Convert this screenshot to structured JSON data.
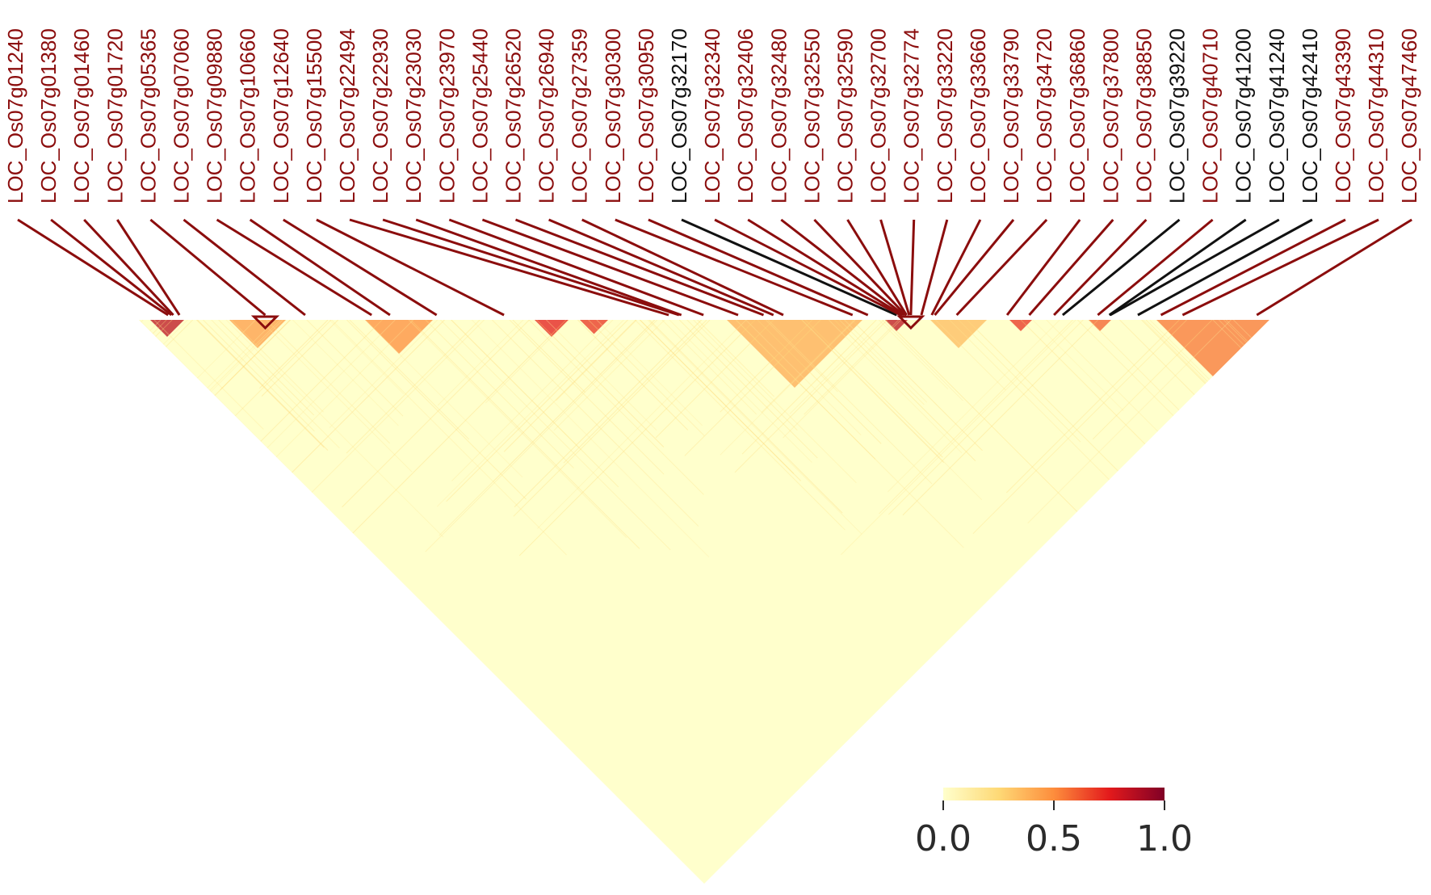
{
  "chart_data": {
    "type": "heatmap",
    "subtype": "linkage-disequilibrium-triangle",
    "genes": [
      {
        "name": "LOC_Os07g01240",
        "highlight": true
      },
      {
        "name": "LOC_Os07g01380",
        "highlight": true
      },
      {
        "name": "LOC_Os07g01460",
        "highlight": true
      },
      {
        "name": "LOC_Os07g01720",
        "highlight": true
      },
      {
        "name": "LOC_Os07g05365",
        "highlight": true
      },
      {
        "name": "LOC_Os07g07060",
        "highlight": true
      },
      {
        "name": "LOC_Os07g09880",
        "highlight": true
      },
      {
        "name": "LOC_Os07g10660",
        "highlight": true
      },
      {
        "name": "LOC_Os07g12640",
        "highlight": true
      },
      {
        "name": "LOC_Os07g15500",
        "highlight": true
      },
      {
        "name": "LOC_Os07g22494",
        "highlight": true
      },
      {
        "name": "LOC_Os07g22930",
        "highlight": true
      },
      {
        "name": "LOC_Os07g23030",
        "highlight": true
      },
      {
        "name": "LOC_Os07g23970",
        "highlight": true
      },
      {
        "name": "LOC_Os07g25440",
        "highlight": true
      },
      {
        "name": "LOC_Os07g26520",
        "highlight": true
      },
      {
        "name": "LOC_Os07g26940",
        "highlight": true
      },
      {
        "name": "LOC_Os07g27359",
        "highlight": true
      },
      {
        "name": "LOC_Os07g30300",
        "highlight": true
      },
      {
        "name": "LOC_Os07g30950",
        "highlight": true
      },
      {
        "name": "LOC_Os07g32170",
        "highlight": false
      },
      {
        "name": "LOC_Os07g32340",
        "highlight": true
      },
      {
        "name": "LOC_Os07g32406",
        "highlight": true
      },
      {
        "name": "LOC_Os07g32480",
        "highlight": true
      },
      {
        "name": "LOC_Os07g32550",
        "highlight": true
      },
      {
        "name": "LOC_Os07g32590",
        "highlight": true
      },
      {
        "name": "LOC_Os07g32700",
        "highlight": true
      },
      {
        "name": "LOC_Os07g32774",
        "highlight": true
      },
      {
        "name": "LOC_Os07g33220",
        "highlight": true
      },
      {
        "name": "LOC_Os07g33660",
        "highlight": true
      },
      {
        "name": "LOC_Os07g33790",
        "highlight": true
      },
      {
        "name": "LOC_Os07g34720",
        "highlight": true
      },
      {
        "name": "LOC_Os07g36860",
        "highlight": true
      },
      {
        "name": "LOC_Os07g37800",
        "highlight": true
      },
      {
        "name": "LOC_Os07g38850",
        "highlight": true
      },
      {
        "name": "LOC_Os07g39220",
        "highlight": false
      },
      {
        "name": "LOC_Os07g40710",
        "highlight": true
      },
      {
        "name": "LOC_Os07g41200",
        "highlight": false
      },
      {
        "name": "LOC_Os07g41240",
        "highlight": false
      },
      {
        "name": "LOC_Os07g42410",
        "highlight": false
      },
      {
        "name": "LOC_Os07g43390",
        "highlight": true
      },
      {
        "name": "LOC_Os07g44310",
        "highlight": true
      },
      {
        "name": "LOC_Os07g47460",
        "highlight": true
      }
    ],
    "colorbar": {
      "range": [
        0.0,
        1.0
      ],
      "ticks": [
        "0.0",
        "0.5",
        "1.0"
      ],
      "colors": [
        "#ffffcc",
        "#fed976",
        "#fd8d3c",
        "#e31a1c",
        "#800026"
      ]
    },
    "hot_blocks": [
      {
        "pos": 0.01,
        "size": 0.03,
        "value": 0.85
      },
      {
        "pos": 0.08,
        "size": 0.05,
        "value": 0.45
      },
      {
        "pos": 0.2,
        "size": 0.06,
        "value": 0.5
      },
      {
        "pos": 0.35,
        "size": 0.03,
        "value": 0.75
      },
      {
        "pos": 0.39,
        "size": 0.025,
        "value": 0.7
      },
      {
        "pos": 0.52,
        "size": 0.12,
        "value": 0.4
      },
      {
        "pos": 0.7,
        "size": 0.05,
        "value": 0.35
      },
      {
        "pos": 0.66,
        "size": 0.02,
        "value": 0.85
      },
      {
        "pos": 0.77,
        "size": 0.02,
        "value": 0.7
      },
      {
        "pos": 0.84,
        "size": 0.02,
        "value": 0.6
      },
      {
        "pos": 0.9,
        "size": 0.1,
        "value": 0.55
      }
    ],
    "colors": {
      "highlight": "#8b0d0d",
      "normal": "#111111",
      "background": "#ffffcc"
    }
  }
}
